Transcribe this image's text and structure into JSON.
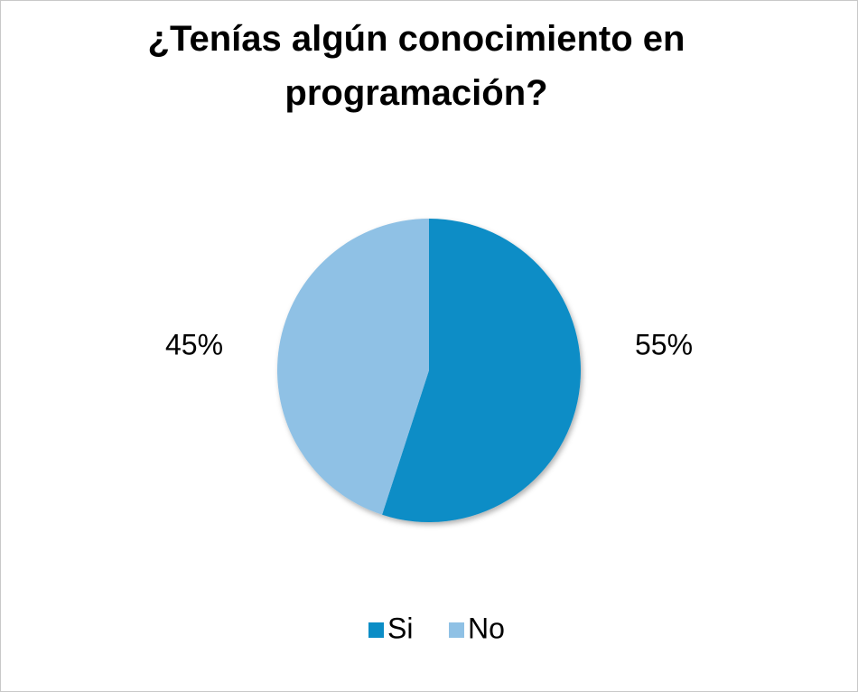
{
  "chart_data": {
    "type": "pie",
    "title": "¿Tenías algún conocimiento en programación?",
    "categories": [
      "Si",
      "No"
    ],
    "values": [
      55,
      45
    ],
    "value_labels": [
      "55%",
      "45%"
    ],
    "colors": [
      "#0b8dc6",
      "#8fc1e5"
    ],
    "legend": "bottom"
  }
}
